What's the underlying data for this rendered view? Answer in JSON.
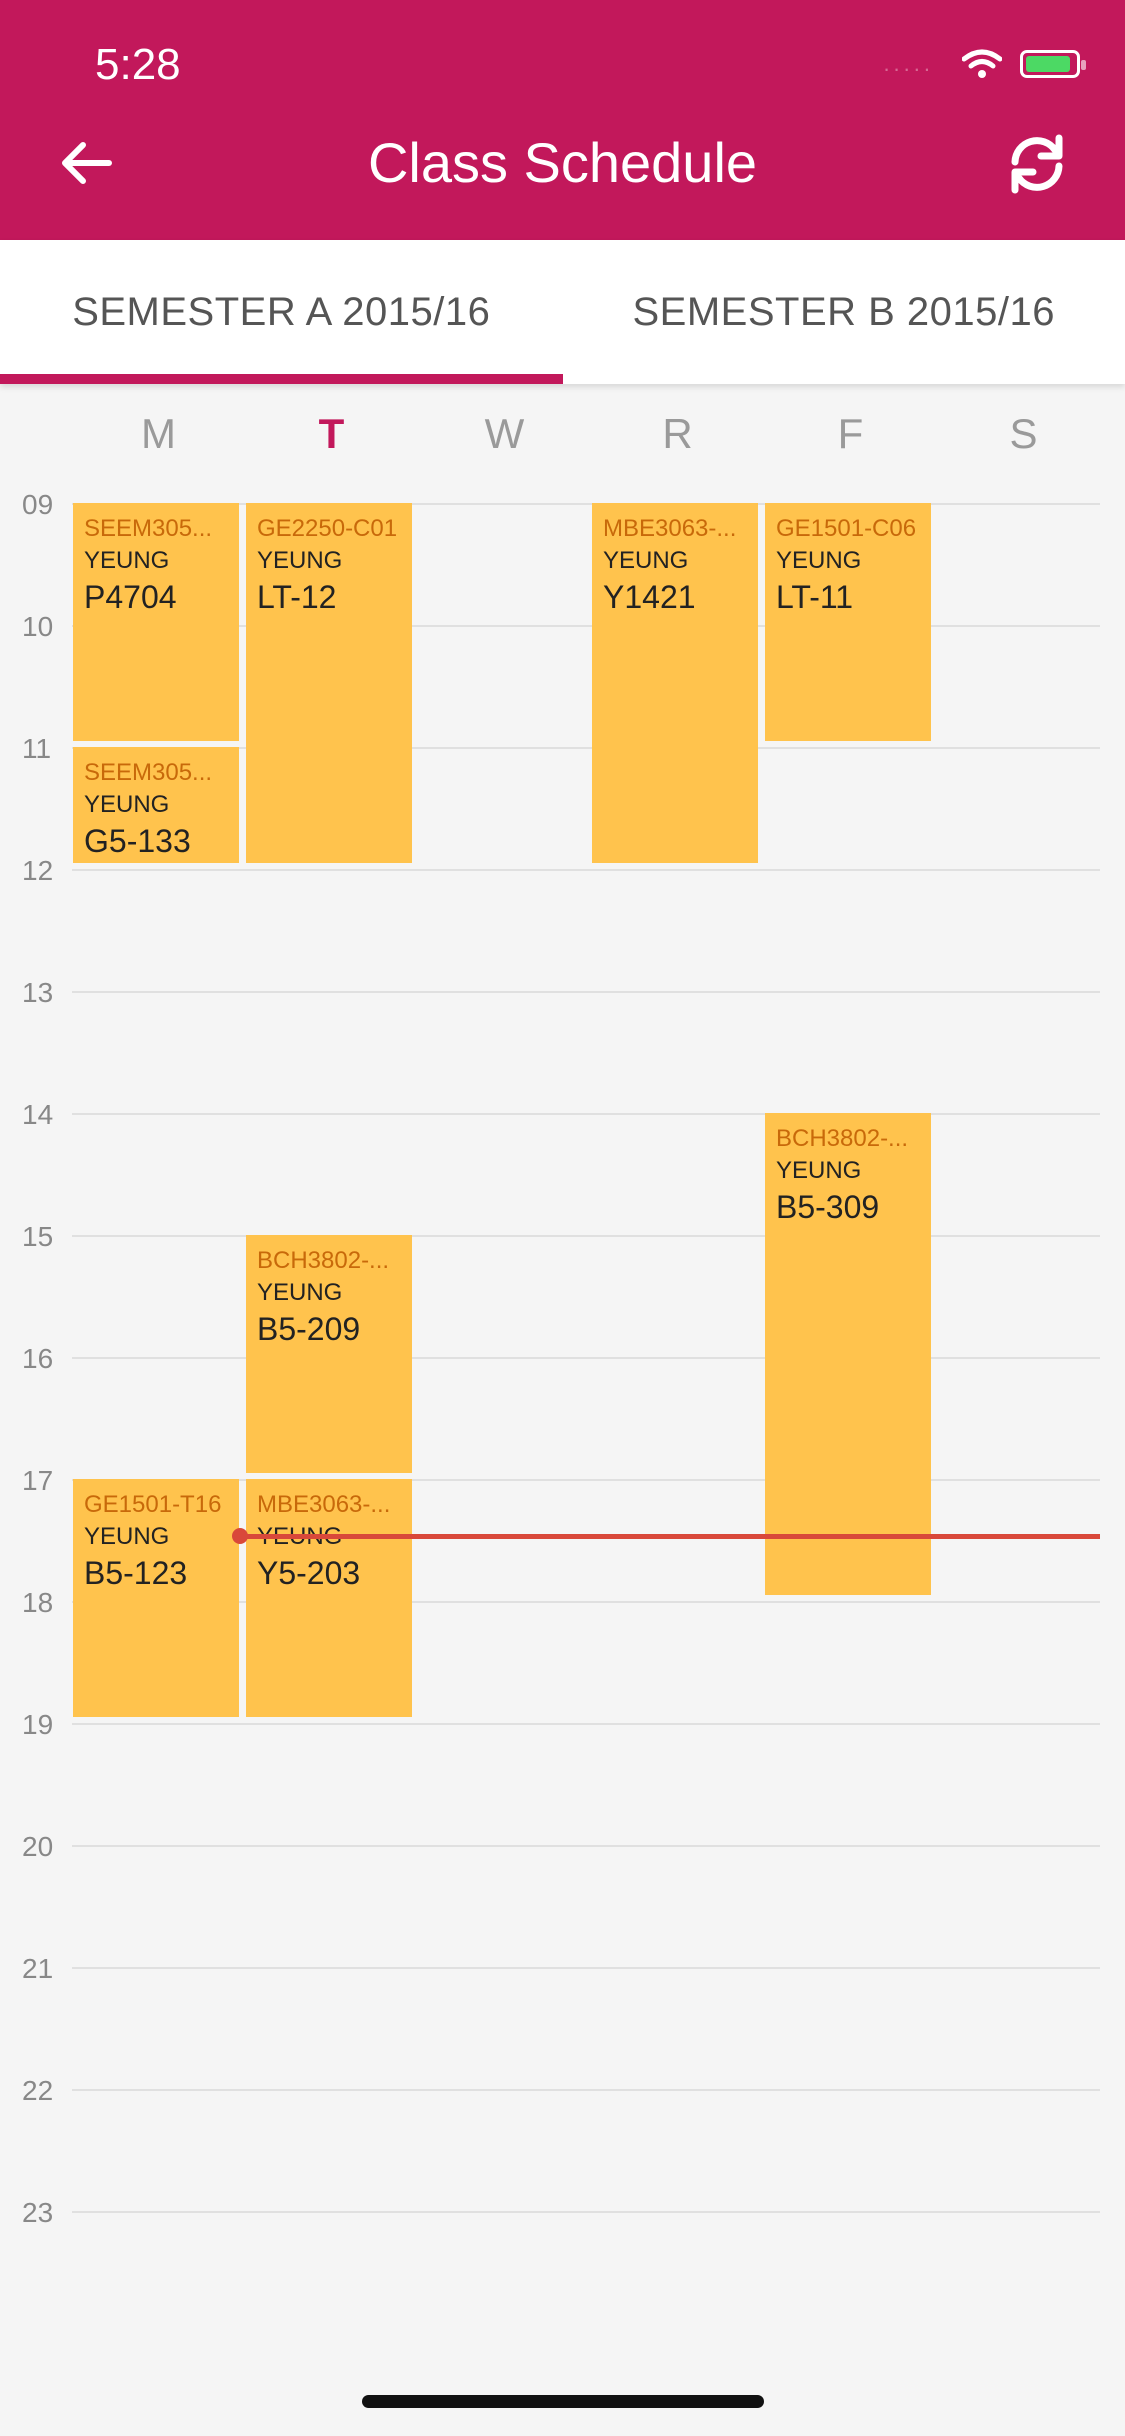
{
  "status_bar": {
    "time": "5:28",
    "dots": "....."
  },
  "header": {
    "title": "Class Schedule"
  },
  "tabs": [
    {
      "label": "SEMESTER A 2015/16",
      "active": true
    },
    {
      "label": "SEMESTER B 2015/16",
      "active": false
    }
  ],
  "days": [
    "M",
    "T",
    "W",
    "R",
    "F",
    "S"
  ],
  "today": "T",
  "hours": [
    "09",
    "10",
    "11",
    "12",
    "13",
    "14",
    "15",
    "16",
    "17",
    "18",
    "19",
    "20",
    "21",
    "22",
    "23"
  ],
  "now_time": "17:28",
  "events": [
    {
      "day": "M",
      "start": "09:00",
      "end": "11:00",
      "code": "SEEM305...",
      "instructor": "YEUNG",
      "room": "P4704"
    },
    {
      "day": "M",
      "start": "11:00",
      "end": "12:00",
      "code": "SEEM305...",
      "instructor": "YEUNG",
      "room": "G5-133"
    },
    {
      "day": "T",
      "start": "09:00",
      "end": "12:00",
      "code": "GE2250-C01",
      "instructor": "YEUNG",
      "room": "LT-12"
    },
    {
      "day": "R",
      "start": "09:00",
      "end": "12:00",
      "code": "MBE3063-...",
      "instructor": "YEUNG",
      "room": "Y1421"
    },
    {
      "day": "F",
      "start": "09:00",
      "end": "11:00",
      "code": "GE1501-C06",
      "instructor": "YEUNG",
      "room": "LT-11"
    },
    {
      "day": "F",
      "start": "14:00",
      "end": "18:00",
      "code": "BCH3802-...",
      "instructor": "YEUNG",
      "room": "B5-309"
    },
    {
      "day": "T",
      "start": "15:00",
      "end": "17:00",
      "code": "BCH3802-...",
      "instructor": "YEUNG",
      "room": "B5-209"
    },
    {
      "day": "M",
      "start": "17:00",
      "end": "19:00",
      "code": "GE1501-T16",
      "instructor": "YEUNG",
      "room": "B5-123"
    },
    {
      "day": "T",
      "start": "17:00",
      "end": "19:00",
      "code": "MBE3063-...",
      "instructor": "YEUNG",
      "room": "Y5-203"
    }
  ],
  "colors": {
    "primary": "#c2185b",
    "event": "#ffc34d",
    "event_code": "#c8690a",
    "now_line": "#d9483a"
  },
  "icons": {
    "back": "arrow-left-icon",
    "refresh": "refresh-icon",
    "wifi": "wifi-icon",
    "battery": "battery-charging-icon"
  }
}
